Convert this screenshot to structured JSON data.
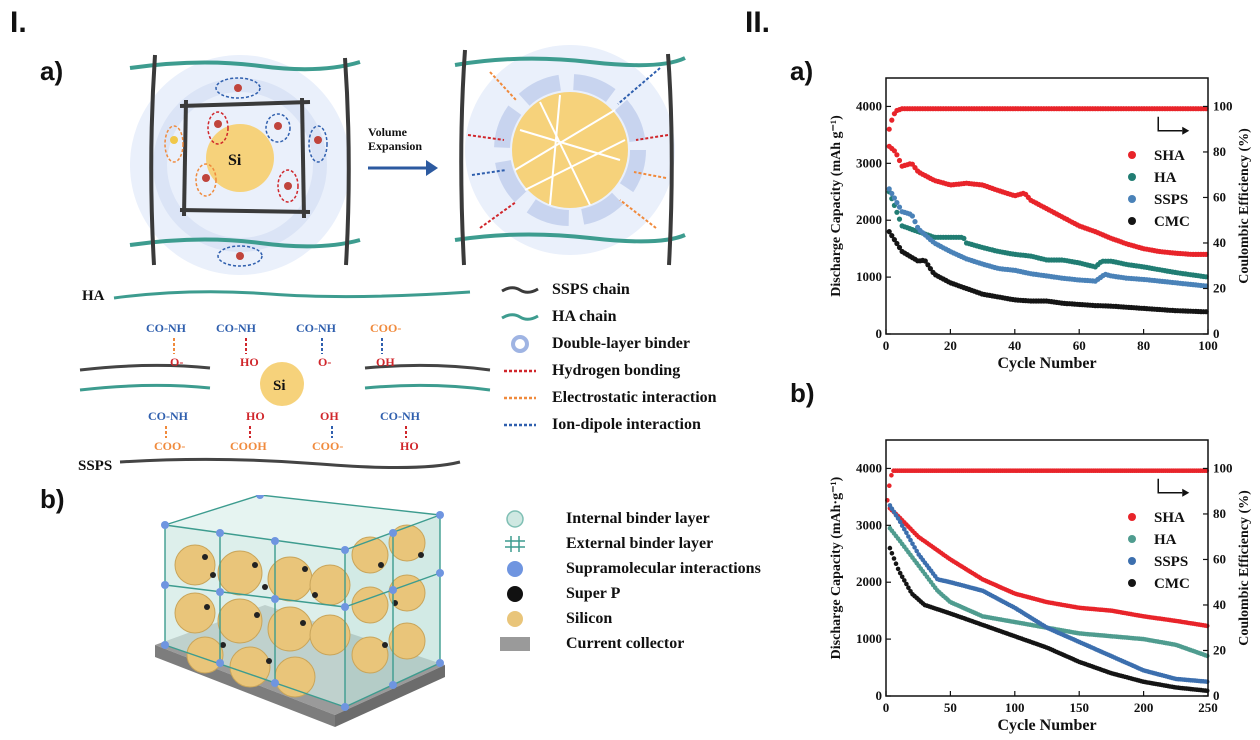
{
  "figure": {
    "part1_label": "I.",
    "part2_label": "II.",
    "left_a_label": "a)",
    "left_b_label": "b)",
    "right_a_label": "a)",
    "right_b_label": "b)"
  },
  "schematic": {
    "core_label": "Si",
    "arrow_label_line1": "Volume",
    "arrow_label_line2": "Expansion"
  },
  "interaction_diagram": {
    "top_chain_label": "HA",
    "bottom_chain_label": "SSPS",
    "center_label": "Si",
    "groups_top": [
      "CO-NH",
      "CO-NH",
      "CO-NH",
      "COO-"
    ],
    "groups_top_partners": [
      "O-",
      "HO",
      "O-",
      "OH"
    ],
    "groups_bottom": [
      "CO-NH",
      "COOH",
      "COO-",
      "CO-NH"
    ],
    "groups_bottom_partners": [
      "COO-",
      "HO",
      "OH",
      "HO"
    ],
    "center_left_groups": [
      "HO",
      "HO"
    ]
  },
  "legend_top": [
    {
      "icon": "ssps-chain-icon",
      "label": "SSPS chain",
      "color": "#3a3a3a"
    },
    {
      "icon": "ha-chain-icon",
      "label": "HA chain",
      "color": "#3d9c8f"
    },
    {
      "icon": "double-layer-binder-icon",
      "label": "Double-layer binder",
      "color": "#9fb4e3"
    },
    {
      "icon": "hydrogen-bonding-icon",
      "label": "Hydrogen bonding",
      "color": "#d0262b"
    },
    {
      "icon": "electrostatic-interaction-icon",
      "label": "Electrostatic interaction",
      "color": "#f08a3c"
    },
    {
      "icon": "ion-dipole-interaction-icon",
      "label": "Ion-dipole interaction",
      "color": "#2f5fae"
    }
  ],
  "legend_bottom": [
    {
      "icon": "internal-binder-layer-icon",
      "label": "Internal binder layer",
      "color": "#a9d7cf"
    },
    {
      "icon": "external-binder-layer-icon",
      "label": "External binder layer",
      "color": "#3d9c8f"
    },
    {
      "icon": "supramolecular-interactions-icon",
      "label": "Supramolecular interactions",
      "color": "#6f95e0"
    },
    {
      "icon": "super-p-icon",
      "label": "Super P",
      "color": "#111111"
    },
    {
      "icon": "silicon-icon",
      "label": "Silicon",
      "color": "#e9c57a"
    },
    {
      "icon": "current-collector-icon",
      "label": "Current collector",
      "color": "#9a9a9a"
    }
  ],
  "chart_data": [
    {
      "type": "scatter",
      "xlabel": "Cycle Number",
      "ylabel": "Discharge Capacity (mAh g⁻¹)",
      "y2label": "Coulombic Efficiency (%)",
      "xlim": [
        0,
        100
      ],
      "ylim": [
        0,
        4500
      ],
      "y2lim": [
        0,
        112.5
      ],
      "xticks": [
        0,
        20,
        40,
        60,
        80,
        100
      ],
      "yticks": [
        0,
        1000,
        2000,
        3000,
        4000
      ],
      "y2ticks": [
        0,
        20,
        40,
        60,
        80,
        100
      ],
      "legend_position": "right",
      "series": [
        {
          "name": "SHA",
          "color": "#e8242a",
          "x": [
            1,
            3,
            5,
            8,
            10,
            15,
            20,
            25,
            30,
            35,
            40,
            43,
            45,
            50,
            55,
            60,
            65,
            70,
            75,
            80,
            85,
            90,
            95,
            100
          ],
          "values": [
            3300,
            3200,
            2950,
            3000,
            2850,
            2700,
            2620,
            2650,
            2620,
            2520,
            2430,
            2480,
            2350,
            2200,
            2050,
            1900,
            1800,
            1680,
            1580,
            1500,
            1450,
            1420,
            1400,
            1400
          ]
        },
        {
          "name": "HA",
          "color": "#217d73",
          "x": [
            1,
            5,
            10,
            15,
            20,
            24,
            25,
            30,
            35,
            40,
            45,
            50,
            55,
            60,
            65,
            67,
            70,
            75,
            80,
            85,
            90,
            95,
            100
          ],
          "values": [
            2500,
            1900,
            1800,
            1700,
            1700,
            1700,
            1600,
            1520,
            1450,
            1400,
            1370,
            1300,
            1300,
            1250,
            1180,
            1280,
            1280,
            1220,
            1180,
            1130,
            1080,
            1040,
            1000
          ]
        },
        {
          "name": "SSPS",
          "color": "#4a82b8",
          "x": [
            1,
            5,
            8,
            10,
            15,
            20,
            25,
            30,
            35,
            40,
            45,
            50,
            55,
            60,
            65,
            68,
            70,
            75,
            80,
            85,
            90,
            95,
            100
          ],
          "values": [
            2550,
            2150,
            2100,
            1850,
            1600,
            1450,
            1320,
            1230,
            1150,
            1120,
            1060,
            1020,
            980,
            950,
            930,
            1050,
            1020,
            980,
            960,
            930,
            900,
            870,
            840
          ]
        },
        {
          "name": "CMC",
          "color": "#151515",
          "x": [
            1,
            5,
            10,
            12,
            15,
            20,
            25,
            30,
            35,
            40,
            45,
            50,
            55,
            60,
            65,
            70,
            75,
            80,
            85,
            90,
            95,
            100
          ],
          "values": [
            1800,
            1450,
            1280,
            1300,
            1050,
            900,
            800,
            700,
            650,
            600,
            580,
            580,
            540,
            520,
            500,
            490,
            470,
            450,
            430,
            410,
            400,
            390
          ]
        },
        {
          "name": "",
          "axis": "right",
          "color": "#e8242a",
          "x": [
            1,
            2,
            3,
            5,
            10,
            20,
            30,
            40,
            50,
            60,
            70,
            80,
            90,
            100
          ],
          "values": [
            90,
            95,
            98,
            99,
            99,
            99,
            99,
            99,
            99,
            99,
            99,
            99,
            99,
            99
          ]
        }
      ]
    },
    {
      "type": "scatter",
      "xlabel": "Cycle Number",
      "ylabel": "Discharge Capacity (mAh·g⁻¹)",
      "y2label": "Coulombic Efficiency (%)",
      "xlim": [
        0,
        250
      ],
      "ylim": [
        0,
        4500
      ],
      "y2lim": [
        0,
        112.5
      ],
      "xticks": [
        0,
        50,
        100,
        150,
        200,
        250
      ],
      "yticks": [
        0,
        1000,
        2000,
        3000,
        4000
      ],
      "y2ticks": [
        0,
        20,
        40,
        60,
        80,
        100
      ],
      "legend_position": "right",
      "series": [
        {
          "name": "SHA",
          "color": "#e8242a",
          "x": [
            3,
            10,
            25,
            50,
            75,
            100,
            125,
            150,
            175,
            200,
            225,
            250
          ],
          "values": [
            3300,
            3150,
            2800,
            2400,
            2050,
            1800,
            1650,
            1550,
            1500,
            1400,
            1320,
            1230
          ]
        },
        {
          "name": "HA",
          "color": "#4f9c8f",
          "x": [
            3,
            10,
            25,
            40,
            50,
            75,
            100,
            125,
            150,
            175,
            200,
            225,
            250
          ],
          "values": [
            2950,
            2750,
            2300,
            1850,
            1650,
            1400,
            1300,
            1200,
            1100,
            1050,
            1000,
            900,
            700
          ]
        },
        {
          "name": "SSPS",
          "color": "#3c6fae",
          "x": [
            3,
            10,
            25,
            40,
            50,
            75,
            100,
            125,
            150,
            175,
            200,
            225,
            250
          ],
          "values": [
            3350,
            3100,
            2500,
            2050,
            2000,
            1850,
            1550,
            1200,
            950,
            700,
            450,
            300,
            250
          ]
        },
        {
          "name": "CMC",
          "color": "#151515",
          "x": [
            3,
            10,
            20,
            30,
            50,
            75,
            100,
            125,
            150,
            175,
            200,
            225,
            250
          ],
          "values": [
            2600,
            2200,
            1800,
            1600,
            1450,
            1250,
            1050,
            850,
            600,
            400,
            250,
            150,
            90
          ]
        },
        {
          "name": "",
          "axis": "right",
          "color": "#e8242a",
          "x": [
            1,
            3,
            5,
            10,
            50,
            100,
            150,
            200,
            250
          ],
          "values": [
            86,
            94,
            99,
            99,
            99,
            99,
            99,
            99,
            99
          ]
        }
      ]
    }
  ]
}
